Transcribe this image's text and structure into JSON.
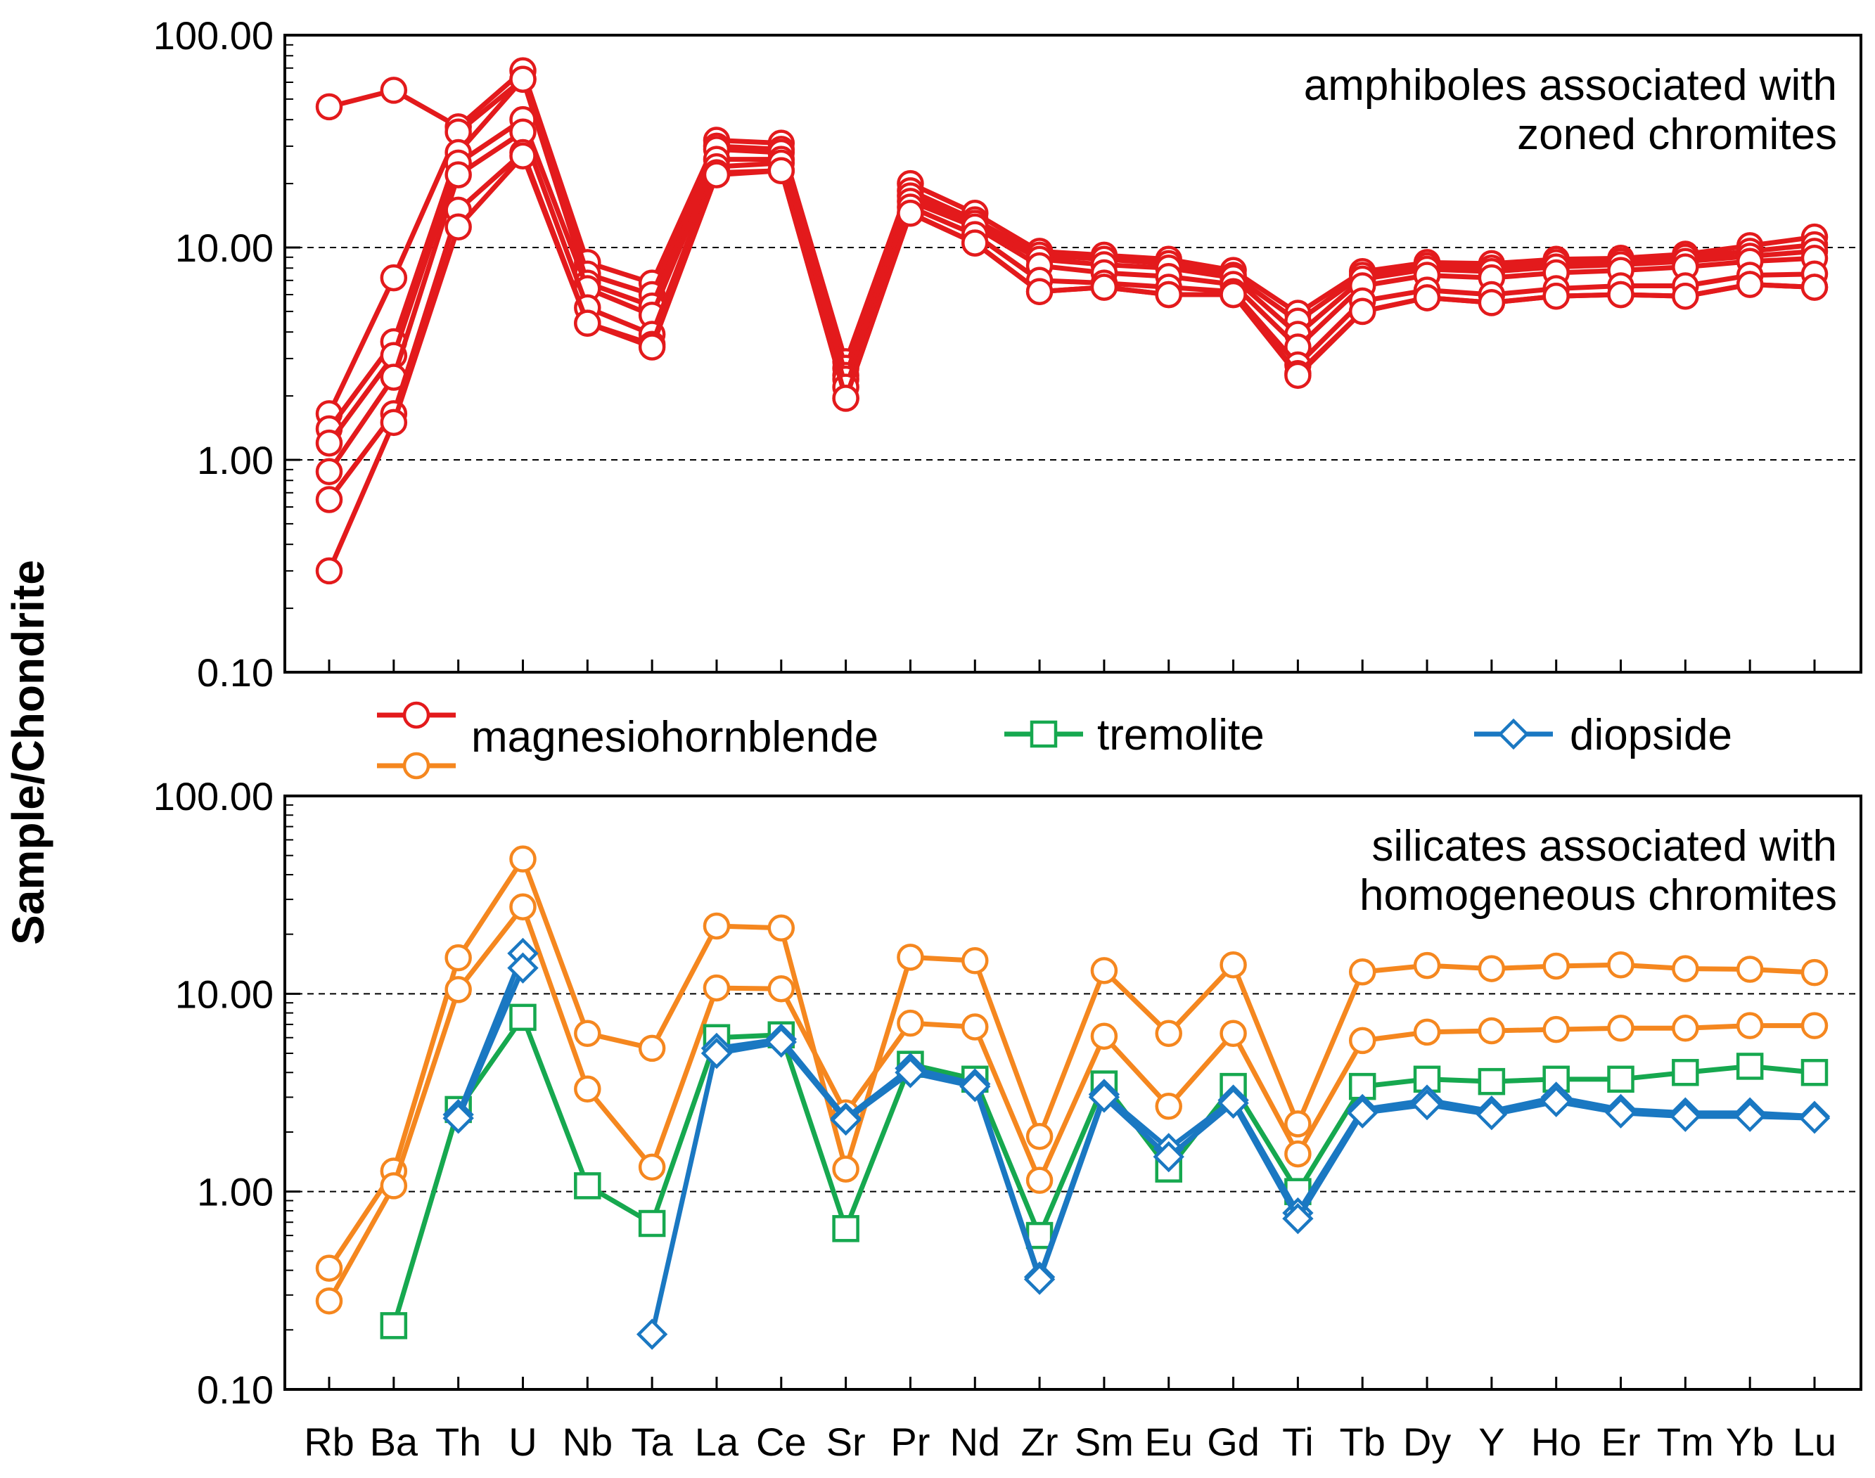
{
  "figure": {
    "y_axis_title": "Sample/Chondrite",
    "legend": [
      {
        "label": "magnesiohornblende",
        "colors": [
          "#E31A1C",
          "#F5871F"
        ],
        "marker": "circle"
      },
      {
        "label": "tremolite",
        "colors": [
          "#16A84F"
        ],
        "marker": "square"
      },
      {
        "label": "diopside",
        "colors": [
          "#1A78C2"
        ],
        "marker": "diamond"
      }
    ]
  },
  "chart_data": [
    {
      "type": "line",
      "yscale": "log",
      "ylim": [
        0.1,
        100
      ],
      "yticks": [
        "100.00",
        "10.00",
        "1.00",
        "0.10"
      ],
      "gridlines_at": [
        10,
        1
      ],
      "annotation": [
        "amphiboles associated with",
        "zoned chromites"
      ],
      "categories": [
        "Rb",
        "Ba",
        "Th",
        "U",
        "Nb",
        "Ta",
        "La",
        "Ce",
        "Sr",
        "Pr",
        "Nd",
        "Zr",
        "Sm",
        "Eu",
        "Gd",
        "Ti",
        "Tb",
        "Dy",
        "Y",
        "Ho",
        "Er",
        "Tm",
        "Yb",
        "Lu"
      ],
      "series": [
        {
          "name": "magnesiohornblende",
          "color": "#E31A1C",
          "marker": "circle",
          "values": [
            46,
            55,
            37,
            68,
            8.5,
            6.8,
            32,
            31,
            2.9,
            20,
            14.5,
            9.6,
            9.2,
            8.8,
            7.8,
            4.9,
            7.7,
            8.5,
            8.4,
            8.8,
            8.9,
            9.3,
            10.2,
            11.2
          ]
        },
        {
          "name": "magnesiohornblende",
          "color": "#E31A1C",
          "marker": "circle",
          "values": [
            1.65,
            7.2,
            35,
            62,
            7.5,
            6.0,
            30,
            29,
            2.7,
            18.5,
            13.5,
            9.2,
            8.8,
            8.4,
            7.4,
            4.5,
            7.4,
            8.2,
            8.0,
            8.5,
            8.6,
            9.0,
            9.6,
            10.3
          ]
        },
        {
          "name": "magnesiohornblende",
          "color": "#E31A1C",
          "marker": "circle",
          "values": [
            1.4,
            3.6,
            28,
            62,
            6.8,
            5.3,
            29,
            28,
            2.5,
            17.5,
            13.0,
            8.8,
            8.3,
            8.0,
            7.2,
            3.9,
            7.1,
            7.9,
            7.7,
            8.1,
            8.3,
            8.6,
            9.1,
            9.6
          ]
        },
        {
          "name": "magnesiohornblende",
          "color": "#E31A1C",
          "marker": "circle",
          "values": [
            1.2,
            3.1,
            25,
            40,
            6.4,
            4.8,
            26,
            26,
            2.4,
            16.5,
            12.5,
            8.2,
            7.6,
            7.3,
            6.7,
            3.4,
            6.6,
            7.4,
            7.2,
            7.6,
            7.8,
            8.1,
            8.6,
            8.9
          ]
        },
        {
          "name": "magnesiohornblende",
          "color": "#E31A1C",
          "marker": "circle",
          "values": [
            0.88,
            2.45,
            22,
            35,
            5.2,
            3.9,
            24,
            25,
            2.2,
            15.5,
            11.5,
            7.0,
            6.8,
            6.5,
            6.2,
            2.8,
            5.6,
            6.3,
            6.0,
            6.4,
            6.6,
            6.6,
            7.4,
            7.5
          ]
        },
        {
          "name": "magnesiohornblende",
          "color": "#E31A1C",
          "marker": "circle",
          "values": [
            0.65,
            1.65,
            15,
            28,
            4.4,
            3.5,
            22.5,
            23,
            1.95,
            14.5,
            10.5,
            6.2,
            6.5,
            6.0,
            6.0,
            2.55,
            5.0,
            5.8,
            5.5,
            5.9,
            6.0,
            5.9,
            6.7,
            6.5
          ]
        },
        {
          "name": "magnesiohornblende",
          "color": "#E31A1C",
          "marker": "circle",
          "values": [
            0.3,
            1.5,
            12.5,
            27,
            4.4,
            3.4,
            22,
            23,
            1.95,
            14.5,
            10.5,
            6.2,
            6.5,
            6.0,
            6.0,
            2.5,
            5.0,
            5.8,
            5.5,
            5.9,
            6.0,
            5.9,
            6.7,
            6.5
          ]
        }
      ]
    },
    {
      "type": "line",
      "yscale": "log",
      "ylim": [
        0.1,
        100
      ],
      "yticks": [
        "100.00",
        "10.00",
        "1.00",
        "0.10"
      ],
      "gridlines_at": [
        10,
        1
      ],
      "annotation": [
        "silicates associated with",
        "homogeneous chromites"
      ],
      "xlabels": [
        "Rb",
        "Ba",
        "Th",
        "U",
        "Nb",
        "Ta",
        "La",
        "Ce",
        "Sr",
        "Pr",
        "Nd",
        "Zr",
        "Sm",
        "Eu",
        "Gd",
        "Ti",
        "Tb",
        "Dy",
        "Y",
        "Ho",
        "Er",
        "Tm",
        "Yb",
        "Lu"
      ],
      "categories": [
        "Rb",
        "Ba",
        "Th",
        "U",
        "Nb",
        "Ta",
        "La",
        "Ce",
        "Sr",
        "Pr",
        "Nd",
        "Zr",
        "Sm",
        "Eu",
        "Gd",
        "Ti",
        "Tb",
        "Dy",
        "Y",
        "Ho",
        "Er",
        "Tm",
        "Yb",
        "Lu"
      ],
      "series": [
        {
          "name": "magnesiohornblende",
          "color": "#F5871F",
          "marker": "circle",
          "values": [
            0.41,
            1.27,
            15.2,
            48,
            6.3,
            5.3,
            22,
            21.5,
            1.3,
            15.3,
            14.7,
            1.9,
            13.1,
            6.3,
            14,
            2.2,
            12.9,
            13.9,
            13.4,
            13.8,
            14,
            13.4,
            13.3,
            12.8
          ]
        },
        {
          "name": "magnesiohornblende",
          "color": "#F5871F",
          "marker": "circle",
          "values": [
            0.28,
            1.07,
            10.5,
            27.5,
            3.3,
            1.33,
            10.7,
            10.6,
            2.5,
            7.1,
            6.8,
            1.14,
            6.1,
            2.7,
            6.3,
            1.55,
            5.8,
            6.4,
            6.5,
            6.6,
            6.7,
            6.7,
            6.9,
            6.9
          ]
        },
        {
          "name": "tremolite",
          "color": "#16A84F",
          "marker": "square",
          "values": [
            null,
            0.21,
            2.6,
            7.6,
            1.07,
            0.69,
            6.0,
            6.2,
            0.65,
            4.4,
            3.7,
            0.6,
            3.5,
            1.3,
            3.4,
            1.0,
            3.4,
            3.7,
            3.6,
            3.7,
            3.7,
            4.0,
            4.3,
            4.0
          ]
        },
        {
          "name": "diopside",
          "color": "#1A78C2",
          "marker": "diamond",
          "values": [
            null,
            null,
            2.45,
            16,
            null,
            0.19,
            5.3,
            5.9,
            2.35,
            4.2,
            3.5,
            0.37,
            3.1,
            1.65,
            2.9,
            0.78,
            2.6,
            2.9,
            2.55,
            3.0,
            2.6,
            2.5,
            2.5,
            2.4
          ]
        },
        {
          "name": "diopside",
          "color": "#1A78C2",
          "marker": "diamond",
          "values": [
            null,
            null,
            2.35,
            13.5,
            null,
            null,
            5.0,
            5.7,
            2.3,
            4.0,
            3.4,
            0.36,
            3.0,
            1.5,
            2.8,
            0.73,
            2.5,
            2.75,
            2.45,
            2.85,
            2.5,
            2.4,
            2.4,
            2.35
          ]
        }
      ]
    }
  ]
}
